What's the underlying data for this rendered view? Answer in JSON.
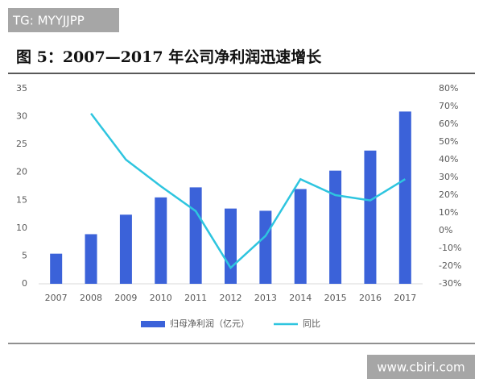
{
  "watermark_top": "TG: MYYJJPP",
  "watermark_bottom": "www.cbiri.com",
  "chart_data": {
    "type": "bar-line",
    "title": "图 5：2007—2017 年公司净利润迅速增长",
    "categories": [
      "2007",
      "2008",
      "2009",
      "2010",
      "2011",
      "2012",
      "2013",
      "2014",
      "2015",
      "2016",
      "2017"
    ],
    "series": [
      {
        "name": "归母净利润（亿元）",
        "type": "bar",
        "color": "#3b62d9",
        "values": [
          5.4,
          8.9,
          12.4,
          15.5,
          17.3,
          13.5,
          13.1,
          17.0,
          20.3,
          23.9,
          30.9
        ]
      },
      {
        "name": "同比",
        "type": "line",
        "axis": "y2",
        "color": "#2ec5df",
        "values": [
          null,
          66,
          40,
          25,
          11,
          -21,
          -3,
          29,
          20,
          17,
          29
        ]
      }
    ],
    "ylim": [
      0,
      35
    ],
    "yticks": [
      0,
      5,
      10,
      15,
      20,
      25,
      30,
      35
    ],
    "y2lim": [
      -30,
      80
    ],
    "y2ticks": [
      {
        "value": -30,
        "label": "-30%"
      },
      {
        "value": -20,
        "label": "-20%"
      },
      {
        "value": -10,
        "label": "-10%"
      },
      {
        "value": 0,
        "label": "0%"
      },
      {
        "value": 10,
        "label": "10%"
      },
      {
        "value": 20,
        "label": "20%"
      },
      {
        "value": 30,
        "label": "30%"
      },
      {
        "value": 40,
        "label": "40%"
      },
      {
        "value": 50,
        "label": "50%"
      },
      {
        "value": 60,
        "label": "60%"
      },
      {
        "value": 70,
        "label": "70%"
      },
      {
        "value": 80,
        "label": "80%"
      }
    ],
    "grid": false,
    "legend": "bottom"
  }
}
